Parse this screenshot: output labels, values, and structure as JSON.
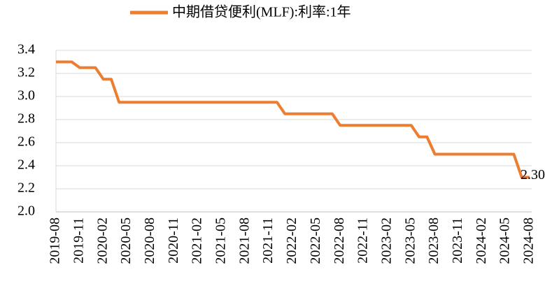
{
  "chart_data": {
    "type": "line",
    "categories": [
      "2019-08",
      null,
      null,
      "2019-11",
      null,
      null,
      "2020-02",
      null,
      null,
      "2020-05",
      null,
      null,
      "2020-08",
      null,
      null,
      "2020-11",
      null,
      null,
      "2021-02",
      null,
      null,
      "2021-05",
      null,
      null,
      "2021-08",
      null,
      null,
      "2021-11",
      null,
      null,
      "2022-02",
      null,
      null,
      "2022-05",
      null,
      null,
      "2022-08",
      null,
      null,
      "2022-11",
      null,
      null,
      "2023-02",
      null,
      null,
      "2023-05",
      null,
      null,
      "2023-08",
      null,
      null,
      "2023-11",
      null,
      null,
      "2024-02",
      null,
      null,
      "2024-05",
      null,
      null,
      "2024-08"
    ],
    "series": [
      {
        "name": "中期借贷便利(MLF):利率:1年",
        "color": "#ED7D31",
        "values": [
          3.3,
          3.3,
          3.3,
          3.25,
          3.25,
          3.25,
          3.15,
          3.15,
          2.95,
          2.95,
          2.95,
          2.95,
          2.95,
          2.95,
          2.95,
          2.95,
          2.95,
          2.95,
          2.95,
          2.95,
          2.95,
          2.95,
          2.95,
          2.95,
          2.95,
          2.95,
          2.95,
          2.95,
          2.95,
          2.85,
          2.85,
          2.85,
          2.85,
          2.85,
          2.85,
          2.85,
          2.75,
          2.75,
          2.75,
          2.75,
          2.75,
          2.75,
          2.75,
          2.75,
          2.75,
          2.75,
          2.65,
          2.65,
          2.5,
          2.5,
          2.5,
          2.5,
          2.5,
          2.5,
          2.5,
          2.5,
          2.5,
          2.5,
          2.5,
          2.3,
          2.3
        ],
        "value_labels": [
          null,
          null,
          null,
          null,
          null,
          null,
          null,
          null,
          null,
          null,
          null,
          null,
          null,
          null,
          null,
          null,
          null,
          null,
          null,
          null,
          null,
          null,
          null,
          null,
          null,
          null,
          null,
          null,
          null,
          null,
          null,
          null,
          null,
          null,
          null,
          null,
          null,
          null,
          null,
          null,
          null,
          null,
          null,
          null,
          null,
          null,
          null,
          null,
          null,
          null,
          null,
          null,
          null,
          null,
          null,
          null,
          null,
          null,
          null,
          null,
          "2.30"
        ]
      }
    ],
    "ylim": [
      2.0,
      3.4
    ],
    "yticks": [
      {
        "value": 2.0,
        "label": "2.0"
      },
      {
        "value": 2.2,
        "label": "2.2"
      },
      {
        "value": 2.4,
        "label": "2.4"
      },
      {
        "value": 2.6,
        "label": "2.6"
      },
      {
        "value": 2.8,
        "label": "2.8"
      },
      {
        "value": 3.0,
        "label": "3.0"
      },
      {
        "value": 3.2,
        "label": "3.2"
      },
      {
        "value": 3.4,
        "label": "3.4"
      }
    ],
    "grid": true,
    "legend": "top"
  }
}
